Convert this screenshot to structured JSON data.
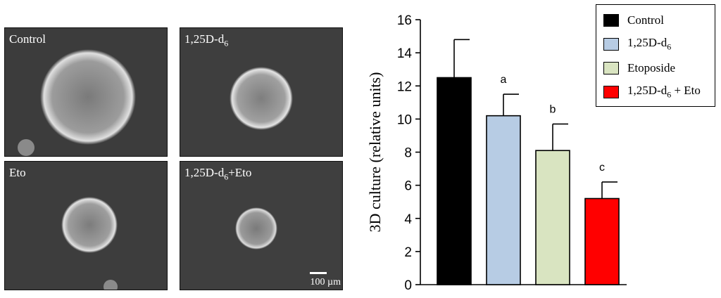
{
  "images": [
    {
      "id": "control",
      "label": "Control",
      "sub": "",
      "suffix": ""
    },
    {
      "id": "vitd",
      "label": "1,25D-d",
      "sub": "6",
      "suffix": ""
    },
    {
      "id": "eto",
      "label": "Eto",
      "sub": "",
      "suffix": ""
    },
    {
      "id": "combo",
      "label": "1,25D-d",
      "sub": "6",
      "suffix": "+Eto"
    }
  ],
  "scale_bar": "100 µm",
  "colors": {
    "control": "#000000",
    "vitd": "#b7cce4",
    "etoposide": "#d9e4c1",
    "combo": "#ff0000"
  },
  "chart_data": {
    "type": "bar",
    "categories": [
      "Control",
      "1,25D-d6",
      "Etoposide",
      "1,25D-d6 + Eto"
    ],
    "values": [
      12.5,
      10.2,
      8.1,
      5.2
    ],
    "errors": [
      2.3,
      1.3,
      1.6,
      1.0
    ],
    "significance": [
      "",
      "a",
      "b",
      "c"
    ],
    "ylabel": "3D culture (relative units)",
    "ylim": [
      0,
      16
    ],
    "yticks": [
      0,
      2,
      4,
      6,
      8,
      10,
      12,
      14,
      16
    ],
    "legend_position": "top-right",
    "grid": false
  },
  "legend": [
    {
      "label": "Control",
      "sub": "",
      "suffix": ""
    },
    {
      "label": "1,25D-d",
      "sub": "6",
      "suffix": ""
    },
    {
      "label": "Etoposide",
      "sub": "",
      "suffix": ""
    },
    {
      "label": "1,25D-d",
      "sub": "6",
      "suffix": " + Eto"
    }
  ]
}
